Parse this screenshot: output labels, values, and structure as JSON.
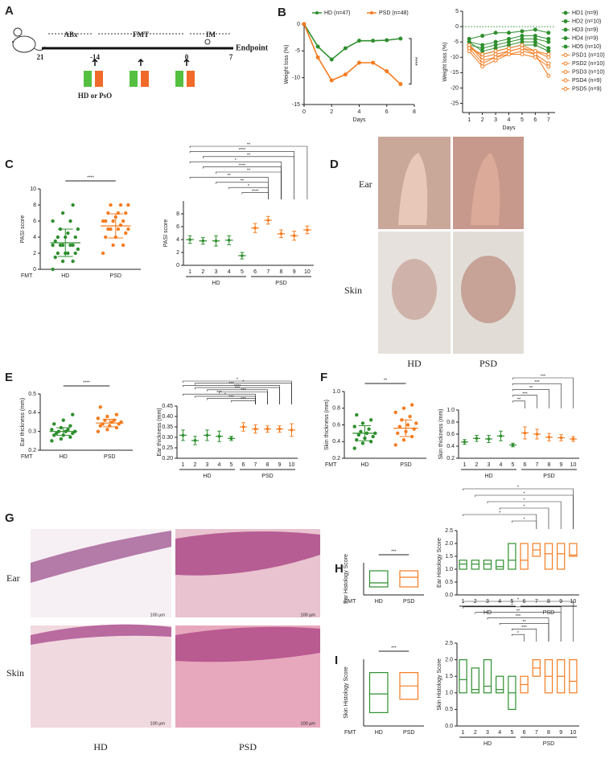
{
  "panel_labels": [
    "A",
    "B",
    "C",
    "D",
    "E",
    "F",
    "G",
    "H",
    "I"
  ],
  "panel_a": {
    "phases": [
      "ABx",
      "FMT",
      "IM"
    ],
    "endpoint": "Endpoint",
    "days": [
      "21",
      "-14",
      "0",
      "7"
    ],
    "donor": "HD or PsO"
  },
  "panel_d": {
    "rows": [
      "Ear",
      "Skin"
    ],
    "columns": [
      "HD",
      "PSD"
    ]
  },
  "panel_g": {
    "rows": [
      "Ear",
      "Skin"
    ],
    "columns": [
      "HD",
      "PSD"
    ],
    "scale_bar": "100 µm"
  },
  "chart_data": [
    {
      "type": "line",
      "x": [
        0,
        1,
        2,
        3,
        4,
        5,
        6,
        7
      ],
      "xlim": [
        0,
        8
      ],
      "xticks": [
        0,
        2,
        4,
        6,
        8
      ],
      "ylim": [
        -15,
        0
      ],
      "yticks": [
        -15,
        -10,
        -5,
        0
      ],
      "xlabel": "Days",
      "ylabel": "Weight loss (%)",
      "legend": "top",
      "annotation": "****",
      "series": [
        {
          "name": "HD (n=47)",
          "color": "#2f8f2f",
          "marker": "filled",
          "values": [
            0,
            -4.2,
            -6.6,
            -4.5,
            -3.1,
            -3.1,
            -3.0,
            -2.7
          ]
        },
        {
          "name": "PSD (n=48)",
          "color": "#f47c20",
          "marker": "filled",
          "values": [
            0,
            -6.2,
            -10.5,
            -9.4,
            -7.2,
            -7.2,
            -8.8,
            -11.2
          ]
        }
      ]
    },
    {
      "type": "line",
      "x": [
        1,
        2,
        3,
        4,
        5,
        6,
        7
      ],
      "xlim": [
        0.5,
        7.5
      ],
      "xticks": [
        1,
        2,
        3,
        4,
        5,
        6,
        7
      ],
      "ylim": [
        -28,
        5
      ],
      "yticks": [
        5,
        0,
        -5,
        -10,
        -15,
        -20,
        -25
      ],
      "xlabel": "Days",
      "ylabel": "Weight loss (%)",
      "legend": "right",
      "zero_line": true,
      "series": [
        {
          "name": "HD1 (n=9)",
          "color": "#2f8f2f",
          "marker": "filled",
          "values": [
            -4,
            -3,
            -2,
            -2,
            -1.5,
            -1,
            -2
          ]
        },
        {
          "name": "HD2 (n=10)",
          "color": "#2f8f2f",
          "marker": "filled",
          "values": [
            -5,
            -6,
            -5,
            -4,
            -3,
            -3,
            -4
          ]
        },
        {
          "name": "HD3 (n=9)",
          "color": "#2f8f2f",
          "marker": "filled",
          "values": [
            -6,
            -7,
            -6,
            -5,
            -4,
            -4,
            -5
          ]
        },
        {
          "name": "HD4 (n=9)",
          "color": "#2f8f2f",
          "marker": "filled",
          "values": [
            -5,
            -8,
            -7,
            -6,
            -5,
            -5,
            -7
          ]
        },
        {
          "name": "HD5 (n=10)",
          "color": "#2f8f2f",
          "marker": "filled",
          "values": [
            -7,
            -9,
            -8,
            -7,
            -6,
            -6,
            -8
          ]
        },
        {
          "name": "PSD1 (n=10)",
          "color": "#f47c20",
          "marker": "open",
          "values": [
            -6,
            -10,
            -9,
            -8,
            -7,
            -8,
            -10
          ]
        },
        {
          "name": "PSD2 (n=10)",
          "color": "#f47c20",
          "marker": "open",
          "values": [
            -7,
            -12,
            -10,
            -9,
            -8,
            -9,
            -16
          ]
        },
        {
          "name": "PSD3 (n=10)",
          "color": "#f47c20",
          "marker": "open",
          "values": [
            -8,
            -13,
            -11,
            -9,
            -9,
            -10,
            -13
          ]
        },
        {
          "name": "PSD4 (n=9)",
          "color": "#f47c20",
          "marker": "open",
          "values": [
            -6,
            -11,
            -10,
            -8,
            -7,
            -9,
            -12
          ]
        },
        {
          "name": "PSD5 (n=9)",
          "color": "#f47c20",
          "marker": "open",
          "values": [
            -7,
            -9,
            -8,
            -7,
            -6,
            -8,
            -9
          ]
        }
      ]
    },
    {
      "type": "dot",
      "categories": [
        "HD",
        "PSD"
      ],
      "xprefix": "FMT",
      "ylabel": "PASI score",
      "ylim": [
        0,
        10
      ],
      "yticks": [
        0,
        2,
        4,
        6,
        8,
        10
      ],
      "annotation": "****",
      "colors": [
        "#2f8f2f",
        "#f47c20"
      ],
      "values": [
        3.3,
        5.4
      ],
      "errors": [
        1.7,
        1.5
      ],
      "points": [
        [
          0,
          1,
          1,
          1.5,
          2,
          2,
          2,
          2,
          2.5,
          3,
          3,
          3,
          3,
          3,
          3.5,
          4,
          4,
          4,
          4.5,
          5,
          5,
          6,
          6,
          7,
          8
        ],
        [
          2,
          3,
          3,
          4,
          4,
          4.5,
          5,
          5,
          5,
          5,
          5.5,
          6,
          6,
          6,
          6,
          6.5,
          7,
          7,
          7,
          8,
          8,
          8
        ]
      ]
    },
    {
      "type": "dot",
      "categories": [
        "1",
        "2",
        "3",
        "4",
        "5",
        "6",
        "7",
        "8",
        "9",
        "10"
      ],
      "groups": [
        "HD",
        "PSD"
      ],
      "ylabel": "PASI score",
      "ylim": [
        0,
        10
      ],
      "yticks": [
        0,
        2,
        4,
        6,
        8
      ],
      "colors": [
        "#2f8f2f",
        "#2f8f2f",
        "#2f8f2f",
        "#2f8f2f",
        "#2f8f2f",
        "#f47c20",
        "#f47c20",
        "#f47c20",
        "#f47c20",
        "#f47c20"
      ],
      "values": [
        4,
        3.8,
        3.8,
        3.9,
        1.5,
        5.8,
        7,
        4.9,
        4.6,
        5.5
      ],
      "errors": [
        0.6,
        0.5,
        0.8,
        0.7,
        0.5,
        0.7,
        0.6,
        0.6,
        0.7,
        0.6
      ],
      "brackets": [
        {
          "from": 0,
          "to": 9,
          "label": "**"
        },
        {
          "from": 0,
          "to": 8,
          "label": "****"
        },
        {
          "from": 1,
          "to": 8,
          "label": "**"
        },
        {
          "from": 0,
          "to": 7,
          "label": "*"
        },
        {
          "from": 1,
          "to": 7,
          "label": "****"
        },
        {
          "from": 2,
          "to": 7,
          "label": "**"
        },
        {
          "from": 0,
          "to": 6,
          "label": "**"
        },
        {
          "from": 2,
          "to": 6,
          "label": "**"
        },
        {
          "from": 3,
          "to": 6,
          "label": "*"
        },
        {
          "from": 4,
          "to": 6,
          "label": "****"
        }
      ]
    },
    {
      "type": "dot",
      "categories": [
        "HD",
        "PSD"
      ],
      "xprefix": "FMT",
      "ylabel": "Ear thickness (mm)",
      "ylim": [
        0.2,
        0.5
      ],
      "yticks": [
        0.2,
        0.3,
        0.4,
        0.5
      ],
      "annotation": "****",
      "colors": [
        "#2f8f2f",
        "#f47c20"
      ],
      "values": [
        0.3,
        0.345
      ],
      "errors": [
        0.02,
        0.02
      ],
      "points": [
        [
          0.25,
          0.26,
          0.27,
          0.28,
          0.28,
          0.29,
          0.29,
          0.3,
          0.3,
          0.3,
          0.31,
          0.31,
          0.32,
          0.33,
          0.34,
          0.36,
          0.39
        ],
        [
          0.3,
          0.31,
          0.32,
          0.33,
          0.33,
          0.34,
          0.34,
          0.35,
          0.35,
          0.36,
          0.36,
          0.37,
          0.38,
          0.39,
          0.43
        ]
      ]
    },
    {
      "type": "dot",
      "categories": [
        "1",
        "2",
        "3",
        "4",
        "5",
        "6",
        "7",
        "8",
        "9",
        "10"
      ],
      "groups": [
        "HD",
        "PSD"
      ],
      "ylabel": "Ear thickness (mm)",
      "ylim": [
        0.2,
        0.45
      ],
      "yticks": [
        {
          "value": 0.2,
          "label": "0.20"
        },
        0.25,
        {
          "value": 0.3,
          "label": "0.30"
        },
        0.35,
        {
          "value": 0.4,
          "label": "0.40"
        },
        0.45
      ],
      "colors": [
        "#2f8f2f",
        "#2f8f2f",
        "#2f8f2f",
        "#2f8f2f",
        "#2f8f2f",
        "#f47c20",
        "#f47c20",
        "#f47c20",
        "#f47c20",
        "#f47c20"
      ],
      "values": [
        0.31,
        0.285,
        0.31,
        0.305,
        0.295,
        0.35,
        0.34,
        0.34,
        0.34,
        0.335
      ],
      "errors": [
        0.025,
        0.02,
        0.025,
        0.025,
        0.01,
        0.02,
        0.02,
        0.015,
        0.015,
        0.03
      ],
      "brackets": [
        {
          "from": 0,
          "to": 9,
          "label": "*"
        },
        {
          "from": 1,
          "to": 9,
          "label": "*"
        },
        {
          "from": 0,
          "to": 8,
          "label": "***"
        },
        {
          "from": 1,
          "to": 8,
          "label": "****"
        },
        {
          "from": 2,
          "to": 7,
          "label": "***"
        },
        {
          "from": 3,
          "to": 7,
          "label": "***"
        },
        {
          "from": 0,
          "to": 6,
          "label": "***"
        },
        {
          "from": 1,
          "to": 6,
          "label": "*"
        },
        {
          "from": 2,
          "to": 6,
          "label": "***"
        },
        {
          "from": 4,
          "to": 6,
          "label": "***"
        }
      ]
    },
    {
      "type": "dot",
      "categories": [
        "HD",
        "PSD"
      ],
      "xprefix": "FMT",
      "ylabel": "Skin thickness (mm)",
      "ylim": [
        0.2,
        1.0
      ],
      "yticks": [
        0.2,
        0.4,
        0.6,
        0.8,
        {
          "value": 1,
          "label": "1.0"
        }
      ],
      "annotation": "**",
      "colors": [
        "#2f8f2f",
        "#f47c20"
      ],
      "values": [
        0.5,
        0.56
      ],
      "errors": [
        0.09,
        0.1
      ],
      "points": [
        [
          0.32,
          0.38,
          0.4,
          0.42,
          0.44,
          0.46,
          0.48,
          0.5,
          0.5,
          0.52,
          0.55,
          0.58,
          0.62,
          0.66,
          0.72
        ],
        [
          0.36,
          0.42,
          0.46,
          0.5,
          0.52,
          0.55,
          0.58,
          0.6,
          0.62,
          0.66,
          0.7,
          0.75,
          0.8,
          0.84
        ]
      ]
    },
    {
      "type": "dot",
      "categories": [
        "1",
        "2",
        "3",
        "4",
        "5",
        "6",
        "7",
        "8",
        "9",
        "10"
      ],
      "groups": [
        "HD",
        "PSD"
      ],
      "ylabel": "Skin thickness (mm)",
      "ylim": [
        0.2,
        1.0
      ],
      "yticks": [
        0.2,
        0.4,
        0.6,
        0.8,
        {
          "value": 1,
          "label": "1.0"
        }
      ],
      "colors": [
        "#2f8f2f",
        "#2f8f2f",
        "#2f8f2f",
        "#2f8f2f",
        "#2f8f2f",
        "#f47c20",
        "#f47c20",
        "#f47c20",
        "#f47c20",
        "#f47c20"
      ],
      "values": [
        0.47,
        0.53,
        0.52,
        0.57,
        0.42,
        0.62,
        0.6,
        0.55,
        0.54,
        0.52
      ],
      "errors": [
        0.04,
        0.05,
        0.06,
        0.08,
        0.03,
        0.1,
        0.08,
        0.06,
        0.05,
        0.04
      ],
      "brackets": [
        {
          "from": 4,
          "to": 9,
          "label": "***"
        },
        {
          "from": 4,
          "to": 8,
          "label": "***"
        },
        {
          "from": 4,
          "to": 7,
          "label": "**"
        },
        {
          "from": 4,
          "to": 6,
          "label": "***"
        },
        {
          "from": 4,
          "to": 5,
          "label": "**"
        }
      ]
    },
    {
      "type": "box",
      "categories": [
        "HD",
        "PSD"
      ],
      "xprefix": "FMT",
      "ylabel": "Ear Histology Score",
      "ylim": [
        0.5,
        2.5
      ],
      "annotation": "***",
      "colors": [
        "#2f8f2f",
        "#f47c20"
      ],
      "boxes": [
        {
          "low": 1,
          "median": 1.25,
          "high": 2
        },
        {
          "low": 1,
          "median": 1.6,
          "high": 2
        }
      ]
    },
    {
      "type": "box",
      "categories": [
        "1",
        "2",
        "3",
        "4",
        "5",
        "6",
        "7",
        "8",
        "9",
        "10"
      ],
      "groups": [
        "HD",
        "PSD"
      ],
      "ylabel": "Ear Histology Score",
      "ylim": [
        0,
        2.5
      ],
      "yticks": [
        {
          "value": 0,
          "label": "0.0"
        },
        0.5,
        {
          "value": 1,
          "label": "1.0"
        },
        1.5,
        {
          "value": 2,
          "label": "2.0"
        },
        2.5
      ],
      "colors": [
        "#2f8f2f",
        "#2f8f2f",
        "#2f8f2f",
        "#2f8f2f",
        "#2f8f2f",
        "#f47c20",
        "#f47c20",
        "#f47c20",
        "#f47c20",
        "#f47c20"
      ],
      "boxes": [
        {
          "low": 1,
          "median": 1.2,
          "high": 1.35
        },
        {
          "low": 1,
          "median": 1.2,
          "high": 1.35
        },
        {
          "low": 1,
          "median": 1.2,
          "high": 1.35
        },
        {
          "low": 1,
          "median": 1.1,
          "high": 1.35
        },
        {
          "low": 1,
          "median": 1.35,
          "high": 2
        },
        {
          "low": 1,
          "median": 1.35,
          "high": 2
        },
        {
          "low": 1.5,
          "median": 1.75,
          "high": 2
        },
        {
          "low": 1,
          "median": 1.6,
          "high": 2
        },
        {
          "low": 1,
          "median": 1.6,
          "high": 2
        },
        {
          "low": 1.5,
          "median": 1.55,
          "high": 2
        }
      ],
      "brackets": [
        {
          "from": 0,
          "to": 9,
          "label": "*"
        },
        {
          "from": 1,
          "to": 9,
          "label": "*"
        },
        {
          "from": 2,
          "to": 8,
          "label": "*"
        },
        {
          "from": 3,
          "to": 7,
          "label": "*"
        },
        {
          "from": 0,
          "to": 6,
          "label": "*"
        },
        {
          "from": 4,
          "to": 6,
          "label": "*"
        }
      ]
    },
    {
      "type": "box",
      "categories": [
        "HD",
        "PSD"
      ],
      "xprefix": "FMT",
      "ylabel": "Skin Histology Score",
      "ylim": [
        0,
        2.5
      ],
      "annotation": "***",
      "colors": [
        "#2f8f2f",
        "#f47c20"
      ],
      "boxes": [
        {
          "low": 0.5,
          "median": 1.2,
          "high": 2
        },
        {
          "low": 1,
          "median": 1.5,
          "high": 2
        }
      ]
    },
    {
      "type": "box",
      "categories": [
        "1",
        "2",
        "3",
        "4",
        "5",
        "6",
        "7",
        "8",
        "9",
        "10"
      ],
      "groups": [
        "HD",
        "PSD"
      ],
      "ylabel": "Skin Histology Score",
      "ylim": [
        0,
        2.5
      ],
      "yticks": [
        {
          "value": 0,
          "label": "0.0"
        },
        0.5,
        {
          "value": 1,
          "label": "1.0"
        },
        1.5,
        {
          "value": 2,
          "label": "2.0"
        },
        2.5
      ],
      "colors": [
        "#2f8f2f",
        "#2f8f2f",
        "#2f8f2f",
        "#2f8f2f",
        "#2f8f2f",
        "#f47c20",
        "#f47c20",
        "#f47c20",
        "#f47c20",
        "#f47c20"
      ],
      "boxes": [
        {
          "low": 1,
          "median": 1.4,
          "high": 2
        },
        {
          "low": 1,
          "median": 1.1,
          "high": 1.75
        },
        {
          "low": 1,
          "median": 1.2,
          "high": 2
        },
        {
          "low": 1,
          "median": 1.1,
          "high": 1.5
        },
        {
          "low": 0.5,
          "median": 1,
          "high": 1.5
        },
        {
          "low": 1,
          "median": 1.25,
          "high": 1.5
        },
        {
          "low": 1.5,
          "median": 1.75,
          "high": 2
        },
        {
          "low": 1,
          "median": 1.5,
          "high": 2
        },
        {
          "low": 1,
          "median": 1.5,
          "high": 2
        },
        {
          "low": 1,
          "median": 1.35,
          "high": 2
        }
      ],
      "brackets": [
        {
          "from": 0,
          "to": 9,
          "label": "*"
        },
        {
          "from": 0,
          "to": 8,
          "label": "*"
        },
        {
          "from": 1,
          "to": 8,
          "label": "**"
        },
        {
          "from": 2,
          "to": 7,
          "label": "***"
        },
        {
          "from": 3,
          "to": 7,
          "label": "**"
        },
        {
          "from": 4,
          "to": 6,
          "label": "***"
        },
        {
          "from": 4,
          "to": 5,
          "label": "*"
        }
      ]
    }
  ]
}
